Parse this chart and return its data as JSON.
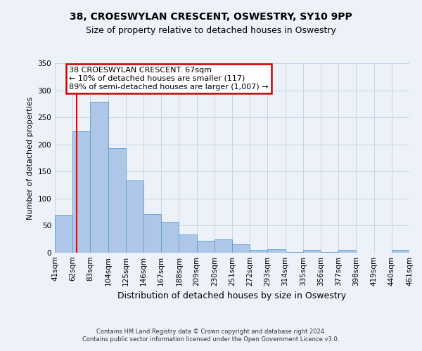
{
  "title": "38, CROESWYLAN CRESCENT, OSWESTRY, SY10 9PP",
  "subtitle": "Size of property relative to detached houses in Oswestry",
  "xlabel": "Distribution of detached houses by size in Oswestry",
  "ylabel": "Number of detached properties",
  "bin_labels": [
    "41sqm",
    "62sqm",
    "83sqm",
    "104sqm",
    "125sqm",
    "146sqm",
    "167sqm",
    "188sqm",
    "209sqm",
    "230sqm",
    "251sqm",
    "272sqm",
    "293sqm",
    "314sqm",
    "335sqm",
    "356sqm",
    "377sqm",
    "398sqm",
    "419sqm",
    "440sqm",
    "461sqm"
  ],
  "bar_heights": [
    70,
    224,
    279,
    193,
    134,
    71,
    57,
    34,
    22,
    25,
    15,
    5,
    7,
    1,
    5,
    1,
    5,
    0,
    0,
    5
  ],
  "bar_color": "#aec6e8",
  "bar_edgecolor": "#5a9fd4",
  "ylim": [
    0,
    350
  ],
  "yticks": [
    0,
    50,
    100,
    150,
    200,
    250,
    300,
    350
  ],
  "red_line_x": 67,
  "bin_edges_values": [
    41,
    62,
    83,
    104,
    125,
    146,
    167,
    188,
    209,
    230,
    251,
    272,
    293,
    314,
    335,
    356,
    377,
    398,
    419,
    440,
    461
  ],
  "annotation_title": "38 CROESWYLAN CRESCENT: 67sqm",
  "annotation_line1": "← 10% of detached houses are smaller (117)",
  "annotation_line2": "89% of semi-detached houses are larger (1,007) →",
  "annotation_box_color": "#ffffff",
  "annotation_box_edgecolor": "#cc0000",
  "footer1": "Contains HM Land Registry data © Crown copyright and database right 2024.",
  "footer2": "Contains public sector information licensed under the Open Government Licence v3.0.",
  "grid_color": "#c8d4e8",
  "background_color": "#edf2f9",
  "title_fontsize": 10,
  "subtitle_fontsize": 9,
  "ylabel_fontsize": 8,
  "xlabel_fontsize": 9,
  "tick_fontsize": 7.5
}
